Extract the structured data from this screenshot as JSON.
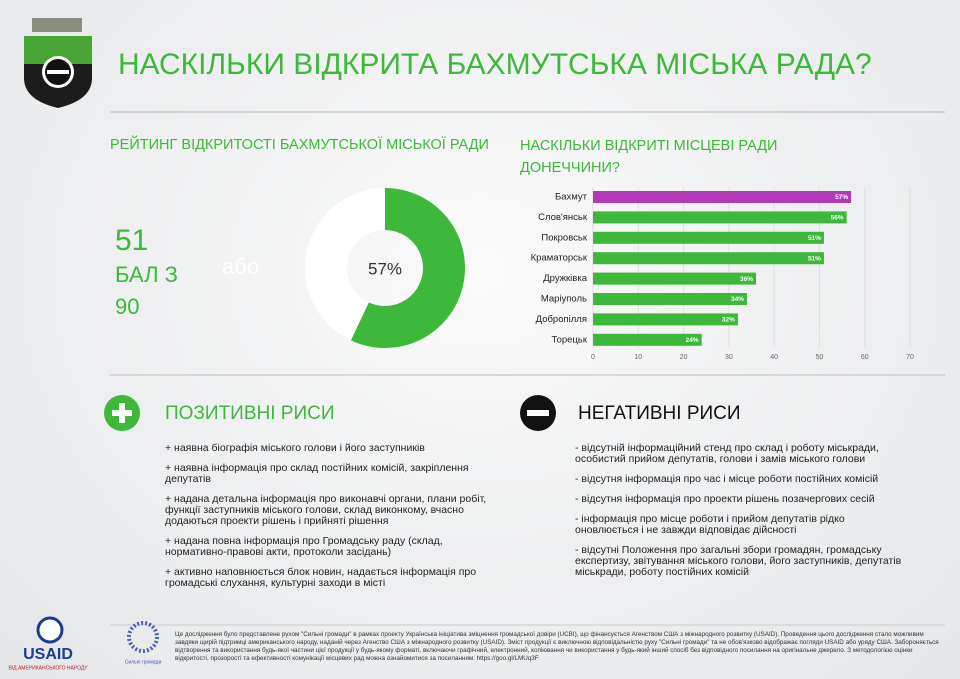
{
  "header": {
    "title": "НАСКІЛЬКИ ВІДКРИТА БАХМУТСЬКА МІСЬКА РАДА?"
  },
  "score": {
    "value": 51,
    "label": "БАЛ З",
    "max": 90,
    "or": "або"
  },
  "chart_data": [
    {
      "type": "pie",
      "title": "РЕЙТИНГ ВІДКРИТОСТІ БАХМУТСЬКОЇ МІСЬКОЇ РАДИ",
      "values": [
        57
      ],
      "value_labels": [
        "57%"
      ],
      "colors": [
        "#3db83a"
      ]
    },
    {
      "type": "bar",
      "title": "НАСКІЛЬКИ ВІДКРИТІ МІСЦЕВІ РАДИ ДОНЕЧЧИНИ?",
      "categories": [
        "Бахмут",
        "Слов'янськ",
        "Покровськ",
        "Краматорськ",
        "Дружківка",
        "Маріуполь",
        "Добропілля",
        "Торецьк"
      ],
      "values": [
        57,
        56,
        51,
        51,
        36,
        34,
        32,
        24
      ],
      "value_labels": [
        "57%",
        "56%",
        "51%",
        "51%",
        "36%",
        "34%",
        "32%",
        "24%"
      ],
      "colors": [
        "#b23ab8",
        "#3db83a",
        "#3db83a",
        "#3db83a",
        "#3db83a",
        "#3db83a",
        "#3db83a",
        "#3db83a"
      ],
      "xlim": [
        0,
        70
      ],
      "xticks": [
        0,
        10,
        20,
        30,
        40,
        50,
        60,
        70
      ],
      "grid": true
    }
  ],
  "positives": {
    "title": "ПОЗИТИВНІ РИСИ",
    "items": [
      "+ наявна біографія міського голови і його заступників",
      "+ наявна інформація про склад постійних комісій, закріплення депутатів",
      "+ надана детальна інформація про виконавчі органи, плани робіт, функції заступників міського голови, склад виконкому, вчасно додаються проекти рішень і прийняті рішення",
      "+ надана повна інформація про Громадську раду (склад, нормативно-правові акти, протоколи засідань)",
      "+ активно наповнюється блок новин, надається інформація про громадські слухання, культурні заходи в місті"
    ]
  },
  "negatives": {
    "title": "НЕГАТИВНІ РИСИ",
    "items": [
      "- відсутній інформаційний стенд про склад і роботу міськради, особистий прийом депутатів, голови і замів міського голови",
      "- відсутня інформація про час і місце роботи постійних комісій",
      "- відсутня інформація про проекти рішень позачергових сесій",
      "- інформація про місце роботи і прийом депутатів рідко оновлюється і не завжди відповідає дійсності",
      "- відсутні Положення про загальні збори громадян, громадську експертизу, звітування міського голови, його заступників, депутатів міськради, роботу постійних комісій"
    ]
  },
  "footer": {
    "logos": [
      "USAID",
      "ВІД АМЕРИКАНСЬКОГО НАРОДУ",
      "Сильні громади"
    ],
    "text": "Це дослідження було представлене рухом \"Сильні громади\" в рамках проекту Українська ініціатива зміцнення громадської довіри (UCBI), що фінансується Агенством США з міжнародного розвитку (USAID). Проведення цього дослідження стало можливим завдяки щирій підтримці американського народу, наданій через Агенство США з міжнародного розвитку (USAID). Зміст продукції є виключною відповідальністю руху \"Сильні громади\" та не обов'язково відображає погляди USAID або уряду США. Забороняється відтворення та використання будь-якої частини цієї продукції у будь-якому форматі, включаючи графічний, електронний, копіювання чи використання у будь-який інший спосіб без відповідного посилання на оригінальне джерело. З методологією оцінки відкритості, прозорості та ефективності комунікації місцевих рад можна ознайомитися за посиланням: https://goo.gl/LMUq3F"
  }
}
